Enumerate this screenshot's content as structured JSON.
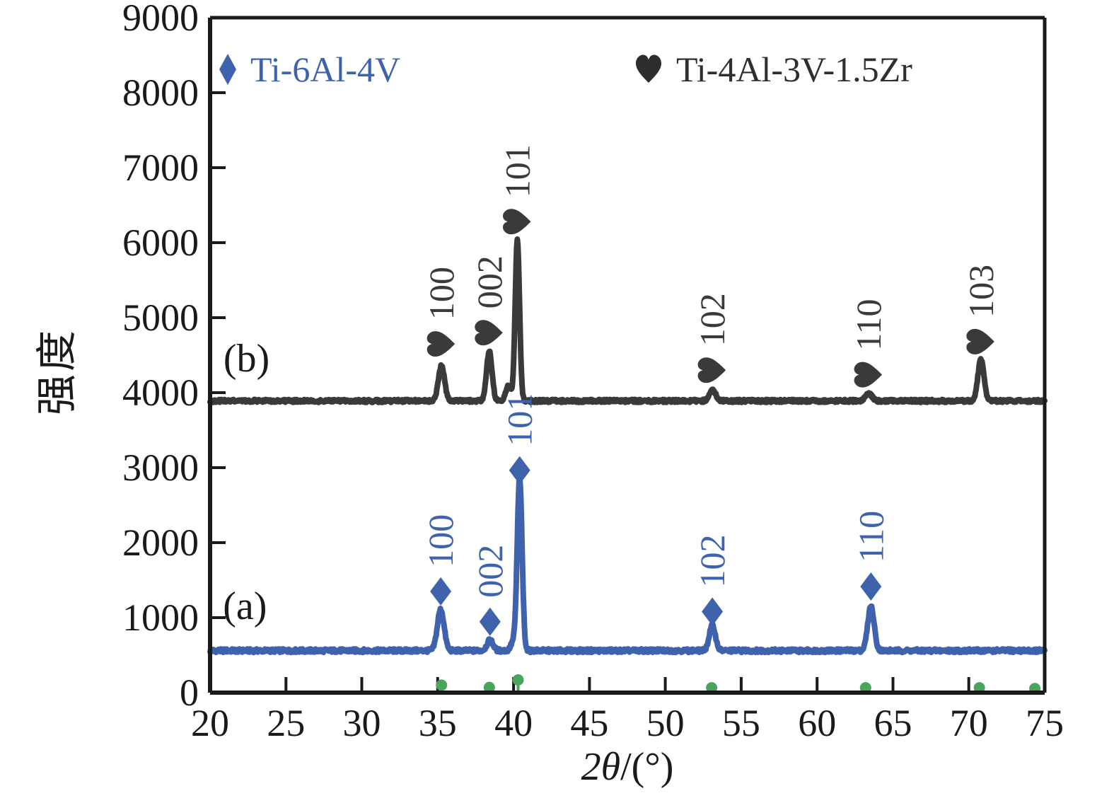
{
  "figure": {
    "background": "#ffffff",
    "legend": {
      "items": [
        {
          "label": "Ti-6Al-4V",
          "marker": "diamond",
          "color": "#3f62ad"
        },
        {
          "label": "Ti-4Al-3V-1.5Zr",
          "marker": "heart",
          "color": "#2e2e2e"
        }
      ]
    },
    "panel_labels": [
      {
        "text": "(a)",
        "two_theta": 22.3,
        "intensity": 1160,
        "color": "#1a1a1a"
      },
      {
        "text": "(b)",
        "two_theta": 22.4,
        "intensity": 4460,
        "color": "#1a1a1a"
      }
    ]
  },
  "chart_data": {
    "type": "line",
    "xlabel_prefix": "2θ",
    "xlabel_suffix": "/(°)",
    "ylabel": "强度",
    "xlim": [
      20,
      75
    ],
    "ylim": [
      0,
      9000
    ],
    "xticks": [
      20,
      25,
      30,
      35,
      40,
      45,
      50,
      55,
      60,
      65,
      70,
      75
    ],
    "yticks": [
      0,
      1000,
      2000,
      3000,
      4000,
      5000,
      6000,
      7000,
      8000,
      9000
    ],
    "axis_color": "#1a1a1a",
    "series": [
      {
        "id": "a",
        "name": "Ti-6Al-4V",
        "color": "#3f62ad",
        "marker": "diamond",
        "baseline": 560,
        "noise": 24,
        "peaks": [
          {
            "hkl": "100",
            "two_theta": 35.2,
            "intensity": 1110,
            "sigma": 0.22,
            "marker_intensity": 1350
          },
          {
            "hkl": "002",
            "two_theta": 38.45,
            "intensity": 700,
            "sigma": 0.2,
            "marker_intensity": 945
          },
          {
            "hkl": null,
            "two_theta": 39.95,
            "intensity": 660,
            "sigma": 0.15
          },
          {
            "hkl": "101",
            "two_theta": 40.4,
            "intensity": 2870,
            "sigma": 0.16,
            "marker_intensity": 2965
          },
          {
            "hkl": "102",
            "two_theta": 53.1,
            "intensity": 900,
            "sigma": 0.2,
            "marker_intensity": 1080
          },
          {
            "hkl": "110",
            "two_theta": 63.55,
            "intensity": 1150,
            "sigma": 0.21,
            "marker_intensity": 1415
          }
        ]
      },
      {
        "id": "b",
        "name": "Ti-4Al-3V-1.5Zr",
        "color": "#3a3a3a",
        "marker": "heart",
        "baseline": 3890,
        "noise": 20,
        "peaks": [
          {
            "hkl": "100",
            "two_theta": 35.25,
            "intensity": 4360,
            "sigma": 0.2,
            "marker_intensity": 4650
          },
          {
            "hkl": "002",
            "two_theta": 38.4,
            "intensity": 4550,
            "sigma": 0.18,
            "marker_intensity": 4800
          },
          {
            "hkl": null,
            "two_theta": 39.65,
            "intensity": 4090,
            "sigma": 0.16
          },
          {
            "hkl": "101",
            "two_theta": 40.25,
            "intensity": 6040,
            "sigma": 0.145,
            "marker_intensity": 6280
          },
          {
            "hkl": "102",
            "two_theta": 53.1,
            "intensity": 4050,
            "sigma": 0.2,
            "marker_intensity": 4300
          },
          {
            "hkl": "110",
            "two_theta": 63.4,
            "intensity": 3990,
            "sigma": 0.22,
            "marker_intensity": 4240
          },
          {
            "hkl": "103",
            "two_theta": 70.8,
            "intensity": 4440,
            "sigma": 0.2,
            "marker_intensity": 4680
          }
        ]
      }
    ],
    "reference_peaks": {
      "color": "#4aa45c",
      "points": [
        {
          "two_theta": 35.25,
          "intensity": 100
        },
        {
          "two_theta": 38.4,
          "intensity": 70
        },
        {
          "two_theta": 40.3,
          "intensity": 170
        },
        {
          "two_theta": 53.05,
          "intensity": 65
        },
        {
          "two_theta": 63.2,
          "intensity": 65
        },
        {
          "two_theta": 70.7,
          "intensity": 65
        },
        {
          "two_theta": 74.35,
          "intensity": 55
        }
      ]
    }
  }
}
